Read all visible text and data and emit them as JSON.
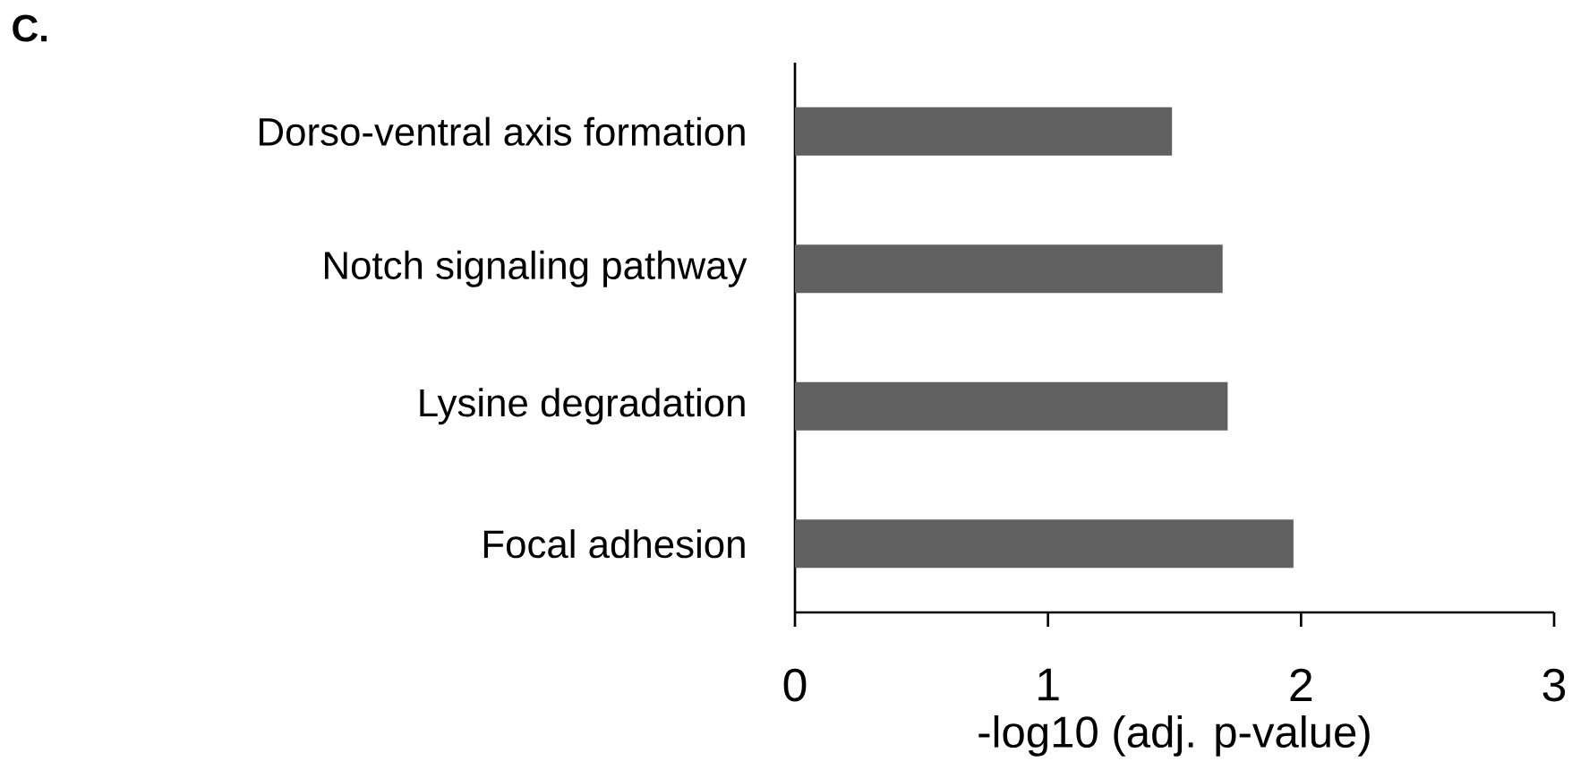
{
  "chart_data": {
    "type": "bar",
    "orientation": "horizontal",
    "title": "**C.**",
    "categories": [
      "Dorso-ventral axis formation",
      "Notch signaling pathway",
      "Lysine degradation",
      "Focal adhesion"
    ],
    "values": [
      1.49,
      1.69,
      1.71,
      1.97
    ],
    "color": "#606060",
    "xlabel": "-log10 (adj. p-value)",
    "xlim": [
      0,
      3
    ],
    "xticks": [
      0,
      1,
      2,
      3
    ],
    "grid": false
  }
}
